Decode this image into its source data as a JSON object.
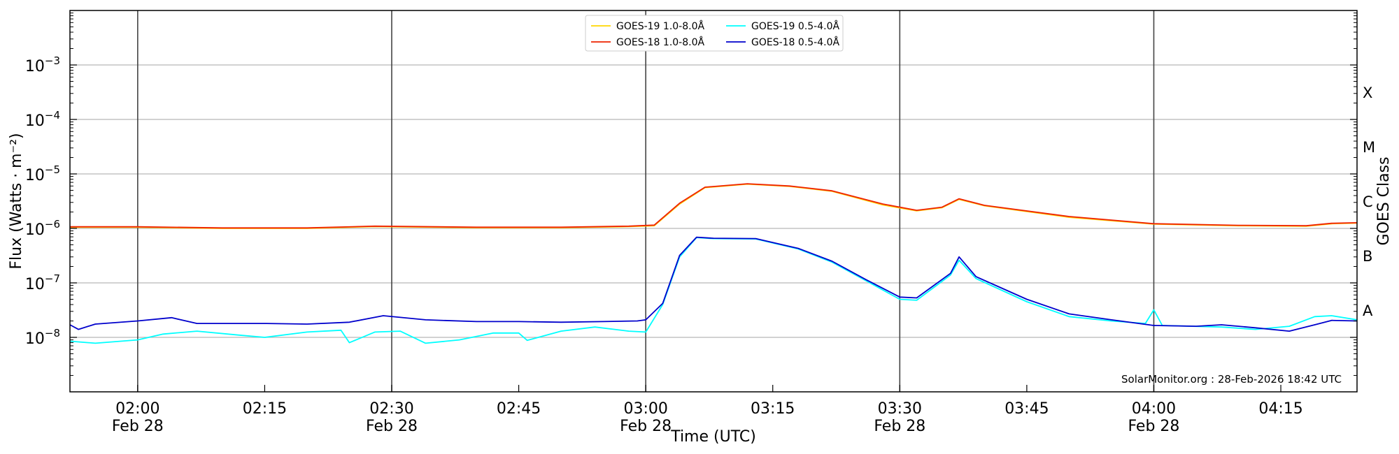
{
  "chart_data": {
    "type": "line",
    "title": "",
    "xlabel": "Time (UTC)",
    "ylabel": "Flux (Watts · m⁻²)",
    "ylabel_right": "GOES Class",
    "yscale": "log",
    "ylim": [
      1e-09,
      0.01
    ],
    "xlim": [
      "01:52",
      "04:24"
    ],
    "grid": "horizontal at decades; vertical lines every 30 minutes",
    "legend_position": "top-center",
    "x_ticks": [
      {
        "time": "02:00",
        "label": "02:00",
        "sublabel": "Feb 28"
      },
      {
        "time": "02:15",
        "label": "02:15",
        "sublabel": ""
      },
      {
        "time": "02:30",
        "label": "02:30",
        "sublabel": "Feb 28"
      },
      {
        "time": "02:45",
        "label": "02:45",
        "sublabel": ""
      },
      {
        "time": "03:00",
        "label": "03:00",
        "sublabel": "Feb 28"
      },
      {
        "time": "03:15",
        "label": "03:15",
        "sublabel": ""
      },
      {
        "time": "03:30",
        "label": "03:30",
        "sublabel": "Feb 28"
      },
      {
        "time": "03:45",
        "label": "03:45",
        "sublabel": ""
      },
      {
        "time": "04:00",
        "label": "04:00",
        "sublabel": "Feb 28"
      },
      {
        "time": "04:15",
        "label": "04:15",
        "sublabel": ""
      }
    ],
    "y_ticks": [
      {
        "value": 1e-08,
        "mantissa": "10",
        "exp": "−8"
      },
      {
        "value": 1e-07,
        "mantissa": "10",
        "exp": "−7"
      },
      {
        "value": 1e-06,
        "mantissa": "10",
        "exp": "−6"
      },
      {
        "value": 1e-05,
        "mantissa": "10",
        "exp": "−5"
      },
      {
        "value": 0.0001,
        "mantissa": "10",
        "exp": "−4"
      },
      {
        "value": 0.001,
        "mantissa": "10",
        "exp": "−3"
      }
    ],
    "goes_classes": [
      {
        "label": "A",
        "value": 3.16e-08
      },
      {
        "label": "B",
        "value": 3.16e-07
      },
      {
        "label": "C",
        "value": 3.16e-06
      },
      {
        "label": "M",
        "value": 3.16e-05
      },
      {
        "label": "X",
        "value": 0.000316
      }
    ],
    "annotation": "SolarMonitor.org : 28-Feb-2026 18:42 UTC",
    "series": [
      {
        "name": "GOES-19 1.0-8.0Å",
        "color": "#ffd700",
        "points": [
          [
            "01:52",
            1.05e-06
          ],
          [
            "02:00",
            1.05e-06
          ],
          [
            "02:10",
            1e-06
          ],
          [
            "02:20",
            1e-06
          ],
          [
            "02:28",
            1.08e-06
          ],
          [
            "02:40",
            1.03e-06
          ],
          [
            "02:50",
            1.03e-06
          ],
          [
            "02:58",
            1.08e-06
          ],
          [
            "03:01",
            1.12e-06
          ],
          [
            "03:04",
            2.8e-06
          ],
          [
            "03:07",
            5.6e-06
          ],
          [
            "03:12",
            6.5e-06
          ],
          [
            "03:17",
            5.9e-06
          ],
          [
            "03:22",
            4.8e-06
          ],
          [
            "03:28",
            2.7e-06
          ],
          [
            "03:32",
            2.1e-06
          ],
          [
            "03:35",
            2.4e-06
          ],
          [
            "03:37",
            3.4e-06
          ],
          [
            "03:40",
            2.6e-06
          ],
          [
            "03:50",
            1.6e-06
          ],
          [
            "04:00",
            1.2e-06
          ],
          [
            "04:10",
            1.12e-06
          ],
          [
            "04:18",
            1.1e-06
          ],
          [
            "04:21",
            1.22e-06
          ],
          [
            "04:24",
            1.25e-06
          ]
        ]
      },
      {
        "name": "GOES-18 1.0-8.0Å",
        "color": "#ee2200",
        "points": [
          [
            "01:52",
            1.07e-06
          ],
          [
            "02:00",
            1.07e-06
          ],
          [
            "02:10",
            1.02e-06
          ],
          [
            "02:20",
            1.02e-06
          ],
          [
            "02:28",
            1.1e-06
          ],
          [
            "02:40",
            1.05e-06
          ],
          [
            "02:50",
            1.05e-06
          ],
          [
            "02:58",
            1.1e-06
          ],
          [
            "03:01",
            1.15e-06
          ],
          [
            "03:04",
            2.9e-06
          ],
          [
            "03:07",
            5.7e-06
          ],
          [
            "03:12",
            6.6e-06
          ],
          [
            "03:17",
            6e-06
          ],
          [
            "03:22",
            4.9e-06
          ],
          [
            "03:28",
            2.8e-06
          ],
          [
            "03:32",
            2.15e-06
          ],
          [
            "03:35",
            2.45e-06
          ],
          [
            "03:37",
            3.5e-06
          ],
          [
            "03:40",
            2.65e-06
          ],
          [
            "03:50",
            1.65e-06
          ],
          [
            "04:00",
            1.22e-06
          ],
          [
            "04:10",
            1.14e-06
          ],
          [
            "04:18",
            1.12e-06
          ],
          [
            "04:21",
            1.24e-06
          ],
          [
            "04:24",
            1.27e-06
          ]
        ]
      },
      {
        "name": "GOES-19 0.5-4.0Å",
        "color": "#00ffff",
        "points": [
          [
            "01:52",
            8.5e-09
          ],
          [
            "01:55",
            7.8e-09
          ],
          [
            "02:00",
            9e-09
          ],
          [
            "02:03",
            1.15e-08
          ],
          [
            "02:07",
            1.3e-08
          ],
          [
            "02:12",
            1.1e-08
          ],
          [
            "02:15",
            1e-08
          ],
          [
            "02:20",
            1.25e-08
          ],
          [
            "02:24",
            1.35e-08
          ],
          [
            "02:25",
            8e-09
          ],
          [
            "02:28",
            1.25e-08
          ],
          [
            "02:31",
            1.3e-08
          ],
          [
            "02:34",
            7.8e-09
          ],
          [
            "02:38",
            9e-09
          ],
          [
            "02:42",
            1.2e-08
          ],
          [
            "02:45",
            1.2e-08
          ],
          [
            "02:46",
            8.8e-09
          ],
          [
            "02:50",
            1.3e-08
          ],
          [
            "02:54",
            1.55e-08
          ],
          [
            "02:58",
            1.3e-08
          ],
          [
            "03:00",
            1.25e-08
          ],
          [
            "03:02",
            4e-08
          ],
          [
            "03:04",
            3e-07
          ],
          [
            "03:06",
            6.8e-07
          ],
          [
            "03:08",
            6.5e-07
          ],
          [
            "03:13",
            6.4e-07
          ],
          [
            "03:18",
            4.2e-07
          ],
          [
            "03:22",
            2.4e-07
          ],
          [
            "03:26",
            1.1e-07
          ],
          [
            "03:30",
            5e-08
          ],
          [
            "03:32",
            4.8e-08
          ],
          [
            "03:36",
            1.4e-07
          ],
          [
            "03:37",
            2.6e-07
          ],
          [
            "03:39",
            1.2e-07
          ],
          [
            "03:45",
            4.5e-08
          ],
          [
            "03:50",
            2.4e-08
          ],
          [
            "03:55",
            2e-08
          ],
          [
            "03:59",
            1.8e-08
          ],
          [
            "04:00",
            3.2e-08
          ],
          [
            "04:01",
            1.65e-08
          ],
          [
            "04:08",
            1.55e-08
          ],
          [
            "04:12",
            1.4e-08
          ],
          [
            "04:16",
            1.6e-08
          ],
          [
            "04:19",
            2.4e-08
          ],
          [
            "04:21",
            2.5e-08
          ],
          [
            "04:24",
            2.1e-08
          ]
        ]
      },
      {
        "name": "GOES-18 0.5-4.0Å",
        "color": "#0000cc",
        "points": [
          [
            "01:52",
            1.7e-08
          ],
          [
            "01:53",
            1.4e-08
          ],
          [
            "01:55",
            1.75e-08
          ],
          [
            "02:00",
            2e-08
          ],
          [
            "02:04",
            2.3e-08
          ],
          [
            "02:07",
            1.8e-08
          ],
          [
            "02:15",
            1.8e-08
          ],
          [
            "02:20",
            1.75e-08
          ],
          [
            "02:25",
            1.9e-08
          ],
          [
            "02:29",
            2.5e-08
          ],
          [
            "02:34",
            2.1e-08
          ],
          [
            "02:40",
            1.95e-08
          ],
          [
            "02:45",
            1.95e-08
          ],
          [
            "02:50",
            1.9e-08
          ],
          [
            "02:55",
            1.95e-08
          ],
          [
            "02:59",
            2e-08
          ],
          [
            "03:00",
            2.1e-08
          ],
          [
            "03:02",
            4.2e-08
          ],
          [
            "03:04",
            3.2e-07
          ],
          [
            "03:06",
            6.9e-07
          ],
          [
            "03:08",
            6.6e-07
          ],
          [
            "03:13",
            6.5e-07
          ],
          [
            "03:18",
            4.3e-07
          ],
          [
            "03:22",
            2.5e-07
          ],
          [
            "03:26",
            1.15e-07
          ],
          [
            "03:30",
            5.5e-08
          ],
          [
            "03:32",
            5.3e-08
          ],
          [
            "03:36",
            1.5e-07
          ],
          [
            "03:37",
            3e-07
          ],
          [
            "03:39",
            1.3e-07
          ],
          [
            "03:45",
            5e-08
          ],
          [
            "03:50",
            2.7e-08
          ],
          [
            "03:55",
            2.1e-08
          ],
          [
            "04:00",
            1.65e-08
          ],
          [
            "04:05",
            1.6e-08
          ],
          [
            "04:08",
            1.7e-08
          ],
          [
            "04:12",
            1.5e-08
          ],
          [
            "04:16",
            1.3e-08
          ],
          [
            "04:19",
            1.7e-08
          ],
          [
            "04:21",
            2.05e-08
          ],
          [
            "04:24",
            2e-08
          ]
        ]
      }
    ]
  }
}
